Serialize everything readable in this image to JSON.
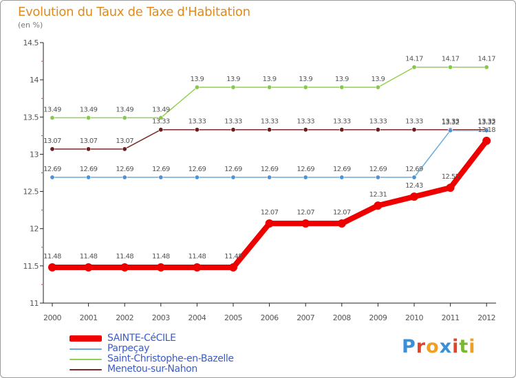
{
  "header": {
    "title": "Evolution du Taux de Taxe d'Habitation",
    "unit": "(en %)"
  },
  "logo": {
    "text": "Proxiti",
    "letter_colors": [
      "#3a8fd6",
      "#e0452a",
      "#f0a020",
      "#3a8fd6",
      "#e0452a",
      "#7ab834",
      "#f0a020"
    ]
  },
  "chart_data": {
    "type": "line",
    "title": "Evolution du Taux de Taxe d'Habitation",
    "ylabel": "(en %)",
    "xlabel": "",
    "x": [
      "2000",
      "2001",
      "2002",
      "2003",
      "2004",
      "2005",
      "2006",
      "2007",
      "2008",
      "2009",
      "2010",
      "2011",
      "2012"
    ],
    "ylim": [
      11,
      14.5
    ],
    "yticks": [
      "11",
      "11.5",
      "12",
      "12.5",
      "13",
      "13.5",
      "14",
      "14.5"
    ],
    "legend_position": "bottom-left",
    "series": [
      {
        "name": "Saint-Christophe-en-Bazelle",
        "color": "#8fd150",
        "point_color": "#86c94a",
        "weight": "thin",
        "values": [
          13.49,
          13.49,
          13.49,
          13.49,
          13.9,
          13.9,
          13.9,
          13.9,
          13.9,
          13.9,
          14.17,
          14.17,
          14.17
        ],
        "labels": [
          "13.49",
          "13.49",
          "13.49",
          "13.49",
          "13.9",
          "13.9",
          "13.9",
          "13.9",
          "13.9",
          "13.9",
          "14.17",
          "14.17",
          "14.17"
        ]
      },
      {
        "name": "Menetou-sur-Nahon",
        "color": "#7a2a2a",
        "point_color": "#6a1f1f",
        "weight": "thin",
        "values": [
          13.07,
          13.07,
          13.07,
          13.33,
          13.33,
          13.33,
          13.33,
          13.33,
          13.33,
          13.33,
          13.33,
          13.33,
          13.33
        ],
        "labels": [
          "13.07",
          "13.07",
          "13.07",
          "13.33",
          "13.33",
          "13.33",
          "13.33",
          "13.33",
          "13.33",
          "13.33",
          "13.33",
          "13.33",
          "13.33"
        ]
      },
      {
        "name": "Parpeçay",
        "color": "#6aaad8",
        "point_color": "#4f92cf",
        "weight": "thin",
        "values": [
          12.69,
          12.69,
          12.69,
          12.69,
          12.69,
          12.69,
          12.69,
          12.69,
          12.69,
          12.69,
          12.69,
          13.32,
          13.32
        ],
        "labels": [
          "12.69",
          "12.69",
          "12.69",
          "12.69",
          "12.69",
          "12.69",
          "12.69",
          "12.69",
          "12.69",
          "12.69",
          "12.69",
          "13.32",
          "13.32"
        ]
      },
      {
        "name": "SAINTE-CéCILE",
        "color": "#ee0000",
        "point_color": "#ee0000",
        "weight": "thick",
        "values": [
          11.48,
          11.48,
          11.48,
          11.48,
          11.48,
          11.48,
          12.07,
          12.07,
          12.07,
          12.31,
          12.43,
          12.55,
          13.18
        ],
        "labels": [
          "11.48",
          "11.48",
          "11.48",
          "11.48",
          "11.48",
          "11.48",
          "12.07",
          "12.07",
          "12.07",
          "12.31",
          "12.43",
          "12.55",
          "13.18"
        ]
      }
    ],
    "legend": [
      {
        "name": "SAINTE-CéCILE",
        "color": "#ee0000",
        "weight": "thick"
      },
      {
        "name": "Parpeçay",
        "color": "#6aaad8",
        "weight": "thin"
      },
      {
        "name": "Saint-Christophe-en-Bazelle",
        "color": "#8fd150",
        "weight": "thin"
      },
      {
        "name": "Menetou-sur-Nahon",
        "color": "#7a2a2a",
        "weight": "thin"
      }
    ]
  }
}
